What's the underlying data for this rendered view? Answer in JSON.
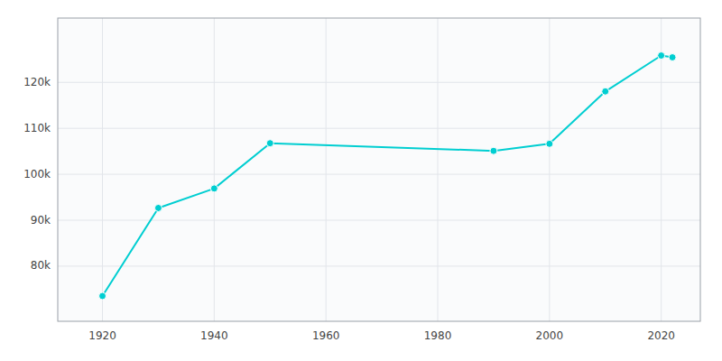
{
  "chart_data": {
    "type": "line",
    "x": [
      1920,
      1930,
      1940,
      1950,
      1990,
      2000,
      2010,
      2020,
      2022
    ],
    "values": [
      73502,
      92663,
      96904,
      106756,
      105090,
      106632,
      118032,
      125845,
      125457
    ],
    "color": "#00CED1",
    "marker": "circle",
    "xlim": [
      1912,
      2027
    ],
    "ylim": [
      68000,
      134000
    ],
    "xticks": [
      1920,
      1940,
      1960,
      1980,
      2000,
      2020
    ],
    "yticks": [
      {
        "value": 80000,
        "label": "80k"
      },
      {
        "value": 90000,
        "label": "90k"
      },
      {
        "value": 100000,
        "label": "100k"
      },
      {
        "value": 110000,
        "label": "110k"
      },
      {
        "value": 120000,
        "label": "120k"
      }
    ],
    "grid": true
  }
}
